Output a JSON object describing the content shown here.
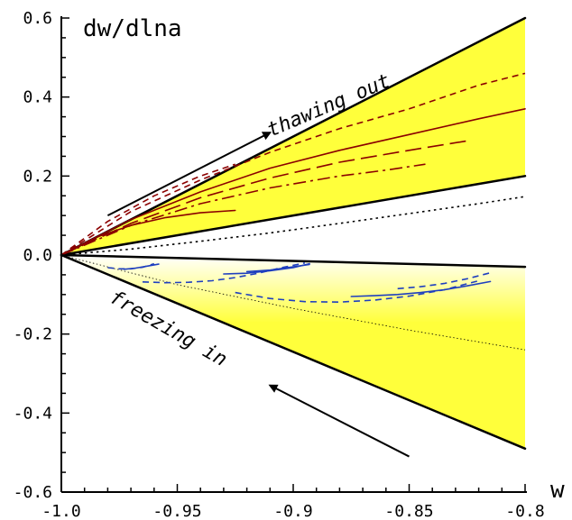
{
  "chart_data": {
    "type": "line",
    "title": "",
    "xlabel": "w",
    "ylabel": "dw/dlna",
    "xlim": [
      -1.0,
      -0.8
    ],
    "ylim": [
      -0.6,
      0.6
    ],
    "x_ticks": [
      "-1.0",
      "-0.95",
      "-0.9",
      "-0.85",
      "-0.8"
    ],
    "y_ticks": [
      "0.6",
      "0.4",
      "0.2",
      "0.0",
      "-0.2",
      "-0.4",
      "-0.6"
    ],
    "grid": false,
    "annotations": [
      {
        "text": "thawing out",
        "arrow_from": [
          -0.98,
          0.1
        ],
        "arrow_to": [
          -0.91,
          0.31
        ]
      },
      {
        "text": "freezing in",
        "arrow_from": [
          -0.85,
          -0.51
        ],
        "arrow_to": [
          -0.91,
          -0.33
        ]
      }
    ],
    "regions": [
      {
        "name": "thawing",
        "fill": "#ffff3b",
        "lower": [
          [
            -1.0,
            0.0
          ],
          [
            -0.8,
            0.2
          ]
        ],
        "upper": [
          [
            -1.0,
            0.0
          ],
          [
            -0.8,
            0.6
          ]
        ]
      },
      {
        "name": "freezing",
        "fill": "#ffff3b",
        "lower": [
          [
            -1.0,
            0.0
          ],
          [
            -0.8,
            -0.49
          ]
        ],
        "upper": [
          [
            -1.0,
            0.0
          ],
          [
            -0.8,
            -0.03
          ]
        ]
      }
    ],
    "series": [
      {
        "style": "solid",
        "color": "#000000",
        "width": 2.5,
        "x": [
          -1.0,
          -0.8
        ],
        "y": [
          0.0,
          0.6
        ]
      },
      {
        "style": "solid",
        "color": "#000000",
        "width": 2.5,
        "x": [
          -1.0,
          -0.8
        ],
        "y": [
          0.0,
          0.2
        ]
      },
      {
        "style": "solid",
        "color": "#000000",
        "width": 2.5,
        "x": [
          -1.0,
          -0.8
        ],
        "y": [
          0.0,
          -0.03
        ]
      },
      {
        "style": "solid",
        "color": "#000000",
        "width": 2.5,
        "x": [
          -1.0,
          -0.8
        ],
        "y": [
          0.0,
          -0.49
        ]
      },
      {
        "style": "dotted",
        "color": "#000000",
        "width": 1.6,
        "x": [
          -1.0,
          -0.97,
          -0.94,
          -0.91,
          -0.88,
          -0.85,
          -0.82,
          -0.8
        ],
        "y": [
          0.0,
          0.015,
          0.035,
          0.056,
          0.08,
          0.105,
          0.13,
          0.148
        ]
      },
      {
        "style": "dotted-thin",
        "color": "#000000",
        "width": 0.8,
        "x": [
          -1.0,
          -0.95,
          -0.9,
          -0.85,
          -0.8
        ],
        "y": [
          0.0,
          -0.075,
          -0.135,
          -0.19,
          -0.24
        ]
      },
      {
        "style": "dashed",
        "color": "#8b0000",
        "width": 1.6,
        "x": [
          -1.0,
          -0.97,
          -0.94,
          -0.91,
          -0.88,
          -0.85,
          -0.82,
          -0.8
        ],
        "y": [
          0.0,
          0.11,
          0.19,
          0.26,
          0.32,
          0.37,
          0.43,
          0.46
        ]
      },
      {
        "style": "solid",
        "color": "#8b0000",
        "width": 1.6,
        "x": [
          -1.0,
          -0.97,
          -0.94,
          -0.91,
          -0.88,
          -0.85,
          -0.82,
          -0.8
        ],
        "y": [
          0.0,
          0.09,
          0.16,
          0.22,
          0.265,
          0.305,
          0.345,
          0.37
        ]
      },
      {
        "style": "longdash",
        "color": "#8b0000",
        "width": 1.6,
        "x": [
          -1.0,
          -0.97,
          -0.94,
          -0.91,
          -0.88,
          -0.85,
          -0.824
        ],
        "y": [
          0.0,
          0.08,
          0.145,
          0.195,
          0.235,
          0.265,
          0.29
        ]
      },
      {
        "style": "dashdot",
        "color": "#8b0000",
        "width": 1.6,
        "x": [
          -1.0,
          -0.97,
          -0.94,
          -0.91,
          -0.88,
          -0.86,
          -0.843
        ],
        "y": [
          0.0,
          0.075,
          0.13,
          0.17,
          0.2,
          0.215,
          0.23
        ]
      },
      {
        "style": "dashed",
        "color": "#8b0000",
        "width": 1.6,
        "x": [
          -1.0,
          -0.98,
          -0.96,
          -0.94,
          -0.925
        ],
        "y": [
          0.0,
          0.085,
          0.15,
          0.2,
          0.23
        ]
      },
      {
        "style": "solid",
        "color": "#8b0000",
        "width": 1.6,
        "x": [
          -1.0,
          -0.985,
          -0.97,
          -0.955,
          -0.94,
          -0.925
        ],
        "y": [
          0.0,
          0.045,
          0.075,
          0.095,
          0.107,
          0.113
        ]
      },
      {
        "style": "dashed",
        "color": "#1f3fbf",
        "width": 1.6,
        "x": [
          -0.98,
          -0.975,
          -0.97,
          -0.965,
          -0.96
        ],
        "y": [
          -0.032,
          -0.035,
          -0.035,
          -0.031,
          -0.022
        ]
      },
      {
        "style": "solid",
        "color": "#1f3fbf",
        "width": 1.6,
        "x": [
          -0.973,
          -0.968,
          -0.963,
          -0.958
        ],
        "y": [
          -0.036,
          -0.033,
          -0.028,
          -0.023
        ]
      },
      {
        "style": "dashed",
        "color": "#1f3fbf",
        "width": 1.6,
        "x": [
          -0.965,
          -0.955,
          -0.945,
          -0.935,
          -0.925,
          -0.915,
          -0.905,
          -0.895
        ],
        "y": [
          -0.068,
          -0.07,
          -0.069,
          -0.065,
          -0.057,
          -0.046,
          -0.032,
          -0.02
        ]
      },
      {
        "style": "solid",
        "color": "#1f3fbf",
        "width": 1.6,
        "x": [
          -0.93,
          -0.92,
          -0.91,
          -0.9,
          -0.893
        ],
        "y": [
          -0.048,
          -0.046,
          -0.04,
          -0.032,
          -0.022
        ]
      },
      {
        "style": "solid",
        "color": "#1f3fbf",
        "width": 1.6,
        "x": [
          -0.92,
          -0.91,
          -0.9,
          -0.893
        ],
        "y": [
          -0.042,
          -0.038,
          -0.03,
          -0.024
        ]
      },
      {
        "style": "dashed",
        "color": "#1f3fbf",
        "width": 1.6,
        "x": [
          -0.925,
          -0.91,
          -0.895,
          -0.88,
          -0.865,
          -0.85,
          -0.835,
          -0.82
        ],
        "y": [
          -0.095,
          -0.11,
          -0.118,
          -0.119,
          -0.114,
          -0.104,
          -0.088,
          -0.065
        ]
      },
      {
        "style": "solid",
        "color": "#1f3fbf",
        "width": 1.6,
        "x": [
          -0.875,
          -0.865,
          -0.855,
          -0.845,
          -0.835,
          -0.825,
          -0.815
        ],
        "y": [
          -0.105,
          -0.103,
          -0.1,
          -0.095,
          -0.088,
          -0.078,
          -0.067
        ]
      },
      {
        "style": "dashed",
        "color": "#1f3fbf",
        "width": 1.6,
        "x": [
          -0.855,
          -0.845,
          -0.835,
          -0.825,
          -0.815
        ],
        "y": [
          -0.085,
          -0.08,
          -0.072,
          -0.06,
          -0.045
        ]
      }
    ]
  }
}
